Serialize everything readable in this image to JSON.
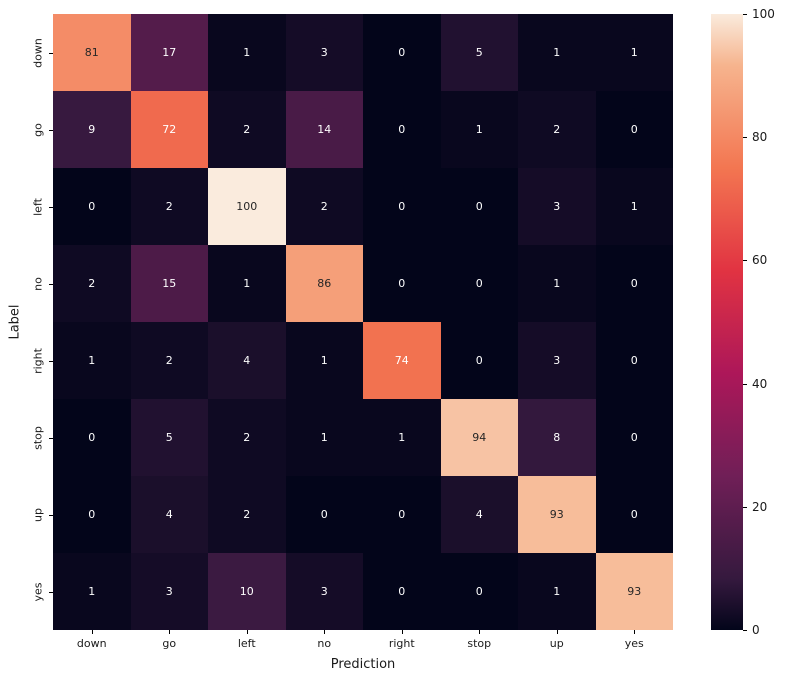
{
  "figure": {
    "background": "#FFFFFF",
    "tick_color": "#1A1A1A"
  },
  "chart_data": {
    "type": "heatmap",
    "title": "",
    "xlabel": "Prediction",
    "ylabel": "Label",
    "x_categories": [
      "down",
      "go",
      "left",
      "no",
      "right",
      "stop",
      "up",
      "yes"
    ],
    "y_categories": [
      "down",
      "go",
      "left",
      "no",
      "right",
      "stop",
      "up",
      "yes"
    ],
    "matrix": [
      [
        81,
        17,
        1,
        3,
        0,
        5,
        1,
        1
      ],
      [
        9,
        72,
        2,
        14,
        0,
        1,
        2,
        0
      ],
      [
        0,
        2,
        100,
        2,
        0,
        0,
        3,
        1
      ],
      [
        2,
        15,
        1,
        86,
        0,
        0,
        1,
        0
      ],
      [
        1,
        2,
        4,
        1,
        74,
        0,
        3,
        0
      ],
      [
        0,
        5,
        2,
        1,
        1,
        94,
        8,
        0
      ],
      [
        0,
        4,
        2,
        0,
        0,
        4,
        93,
        0
      ],
      [
        1,
        3,
        10,
        3,
        0,
        0,
        1,
        93
      ]
    ],
    "vmin": 0,
    "vmax": 100,
    "grid": false,
    "annotated": true,
    "annotation_text_light": "#FFFFFF",
    "annotation_text_dark": "#262626",
    "legend_position": "none",
    "colorbar": {
      "position": "right",
      "ticks": [
        0,
        20,
        40,
        60,
        80,
        100
      ]
    },
    "colormap": {
      "name": "rocket",
      "stops": [
        [
          0.0,
          "#03051A"
        ],
        [
          0.083,
          "#35193E"
        ],
        [
          0.25,
          "#701F57"
        ],
        [
          0.417,
          "#AD1759"
        ],
        [
          0.583,
          "#E13342"
        ],
        [
          0.75,
          "#F37651"
        ],
        [
          0.917,
          "#F6B48E"
        ],
        [
          1.0,
          "#FAEBDD"
        ]
      ]
    }
  }
}
